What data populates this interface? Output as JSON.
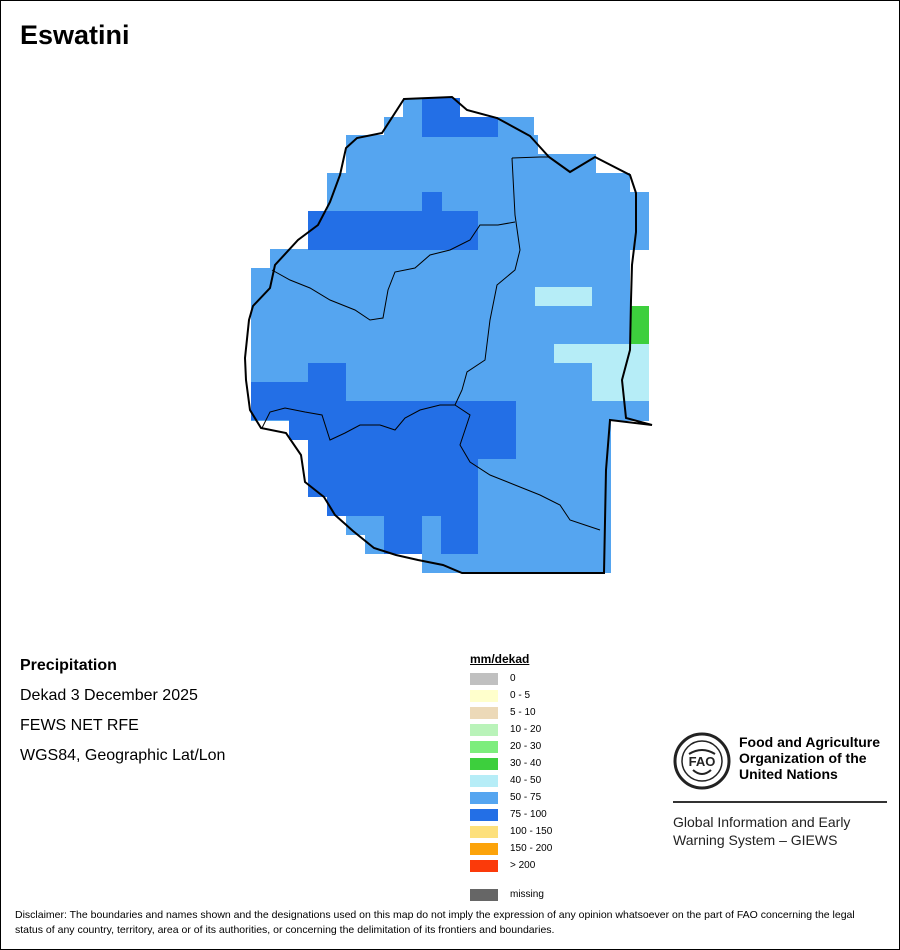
{
  "title": "Eswatini",
  "info": {
    "heading": "Precipitation",
    "period": "Dekad 3 December 2025",
    "source": "FEWS NET RFE",
    "projection": "WGS84, Geographic Lat/Lon"
  },
  "legend": {
    "title": "mm/dekad",
    "items": [
      {
        "label": "0",
        "color": "#c0c0c0"
      },
      {
        "label": "0 - 5",
        "color": "#ffffcc"
      },
      {
        "label": "5 - 10",
        "color": "#ecd9b8"
      },
      {
        "label": "10 - 20",
        "color": "#b9f3b9"
      },
      {
        "label": "20 - 30",
        "color": "#7ded7d"
      },
      {
        "label": "30 - 40",
        "color": "#3dcf3d"
      },
      {
        "label": "40 - 50",
        "color": "#b6edf7"
      },
      {
        "label": "50 - 75",
        "color": "#55a5f0"
      },
      {
        "label": "75 - 100",
        "color": "#236fe6"
      },
      {
        "label": "100 - 150",
        "color": "#fde07b"
      },
      {
        "label": "150 - 200",
        "color": "#fca30a"
      },
      {
        "label": "> 200",
        "color": "#fb3a0a"
      }
    ],
    "missing": {
      "label": "missing",
      "color": "#666666"
    }
  },
  "fao": {
    "line1": "Food and Agriculture",
    "line2": "Organization of the",
    "line3": "United Nations",
    "logo_text": "FAO",
    "giews1": "Global Information and Early",
    "giews2": "Warning System – GIEWS"
  },
  "disclaimer": "Disclaimer: The boundaries and names shown and the designations used on this map do not imply the expression of any opinion whatsoever on the part of FAO concerning the legal status of any country, territory, area or of its authorities, or concerning the delimitation of its frontiers and boundaries."
}
